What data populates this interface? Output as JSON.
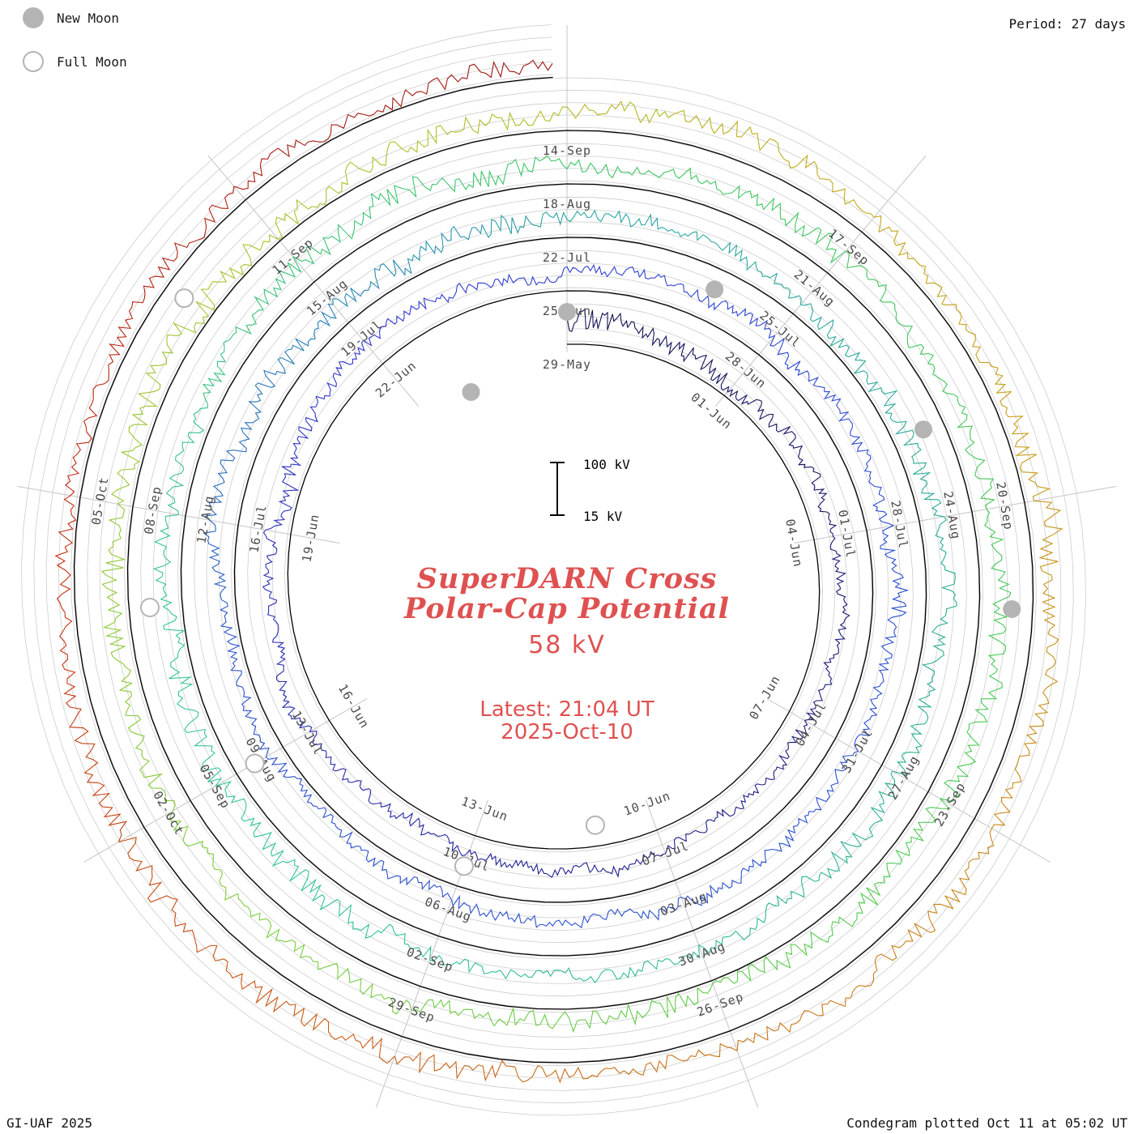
{
  "legend": {
    "new_moon": "New Moon",
    "full_moon": "Full Moon"
  },
  "period_label": "Period: 27 days",
  "credits": {
    "left": "GI-UAF 2025",
    "right": "Condegram plotted Oct 11 at 05:02 UT"
  },
  "chart_data": {
    "type": "line",
    "subtype": "condegram-spiral",
    "title_line1": "SuperDARN Cross",
    "title_line2": "Polar-Cap Potential",
    "current_value": "58 kV",
    "latest_label": "Latest: 21:04 UT",
    "latest_date": "2025-Oct-10",
    "units": "kV",
    "period_days": 27,
    "total_days": 134.88,
    "start_label": "29-May",
    "accent_color": "#df5151",
    "grid_color": "#cccccc",
    "spoke_color": "#c4c4c4",
    "baseline_color": "#000000",
    "moon_color": "#b4b4b4",
    "label_color": "#4a4a4a",
    "scale": {
      "max_label": "100 kV",
      "min_label": "15 kV",
      "min_kv": 15,
      "max_kv": 100,
      "grid_levels_kv": [
        20,
        40,
        60,
        80,
        100
      ]
    },
    "label_step_days": 3,
    "date_labels": [
      "29-May",
      "01-Jun",
      "04-Jun",
      "07-Jun",
      "10-Jun",
      "13-Jun",
      "16-Jun",
      "19-Jun",
      "22-Jun",
      "25-Jun",
      "28-Jun",
      "01-Jul",
      "04-Jul",
      "07-Jul",
      "10-Jul",
      "13-Jul",
      "16-Jul",
      "19-Jul",
      "22-Jul",
      "25-Jul",
      "28-Jul",
      "31-Jul",
      "03-Aug",
      "06-Aug",
      "09-Aug",
      "12-Aug",
      "15-Aug",
      "18-Aug",
      "21-Aug",
      "24-Aug",
      "27-Aug",
      "30-Aug",
      "02-Sep",
      "05-Sep",
      "08-Sep",
      "11-Sep",
      "14-Sep",
      "17-Sep",
      "20-Sep",
      "23-Sep",
      "26-Sep",
      "29-Sep",
      "02-Oct",
      "05-Oct"
    ],
    "color_stops": [
      [
        0,
        "#12124e"
      ],
      [
        12,
        "#1d1d8c"
      ],
      [
        24,
        "#3238cc"
      ],
      [
        34,
        "#2a50d2"
      ],
      [
        46,
        "#2b50cc"
      ],
      [
        54,
        "#2aa4a4"
      ],
      [
        62,
        "#2aae92"
      ],
      [
        72,
        "#32c49e"
      ],
      [
        81,
        "#3cc464"
      ],
      [
        90,
        "#48ca52"
      ],
      [
        98,
        "#7ecc3c"
      ],
      [
        106,
        "#aac22a"
      ],
      [
        112,
        "#c6a216"
      ],
      [
        118,
        "#c8811a"
      ],
      [
        124,
        "#c85a14"
      ],
      [
        129,
        "#c22a12"
      ],
      [
        135,
        "#991410"
      ]
    ],
    "moons": [
      {
        "label": "27-May",
        "type": "new",
        "day": -2
      },
      {
        "label": "11-Jun",
        "type": "full",
        "day": 13
      },
      {
        "label": "25-Jun",
        "type": "new",
        "day": 27
      },
      {
        "label": "10-Jul",
        "type": "full",
        "day": 42
      },
      {
        "label": "24-Jul",
        "type": "new",
        "day": 56
      },
      {
        "label": "09-Aug",
        "type": "full",
        "day": 72
      },
      {
        "label": "23-Aug",
        "type": "new",
        "day": 86
      },
      {
        "label": "07-Sep",
        "type": "full",
        "day": 101
      },
      {
        "label": "21-Sep",
        "type": "new",
        "day": 115
      },
      {
        "label": "07-Oct",
        "type": "full",
        "day": 131
      }
    ]
  }
}
